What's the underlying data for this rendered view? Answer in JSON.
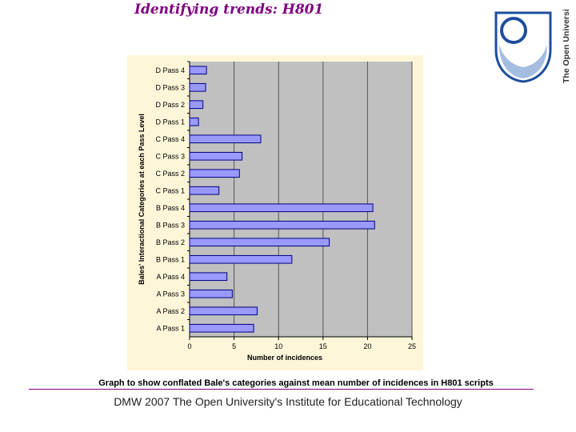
{
  "slide": {
    "title": "Identifying trends: H801",
    "caption": "Graph to show conflated Bale's categories against mean number of incidences in H801 scripts",
    "footer": "DMW 2007 The Open University's Institute for Educational Technology"
  },
  "logo": {
    "text": "The Open University",
    "shield_color": "#1f4e9c"
  },
  "colors": {
    "plot_bg": "#c0c0c0",
    "outer_bg": "#fdf6d8",
    "bar_fill": "#9999ff",
    "bar_stroke": "#000080",
    "title_color": "#800080"
  },
  "chart_data": {
    "type": "bar",
    "orientation": "horizontal",
    "xlabel": "Number of incidences",
    "ylabel": "Bales' Interactional Categories at each Pass Level",
    "xlim": [
      0,
      25
    ],
    "xticks": [
      0,
      5,
      10,
      15,
      20,
      25
    ],
    "grid": true,
    "categories": [
      "D Pass 4",
      "D Pass 3",
      "D Pass 2",
      "D Pass 1",
      "C Pass 4",
      "C Pass 3",
      "C Pass 2",
      "C Pass 1",
      "B Pass 4",
      "B Pass 3",
      "B Pass 2",
      "B Pass 1",
      "A Pass 4",
      "A Pass 3",
      "A Pass 2",
      "A Pass 1"
    ],
    "values": [
      1.9,
      1.8,
      1.5,
      1.0,
      8.0,
      5.9,
      5.6,
      3.3,
      20.6,
      20.8,
      15.7,
      11.5,
      4.2,
      4.8,
      7.6,
      7.2
    ]
  }
}
